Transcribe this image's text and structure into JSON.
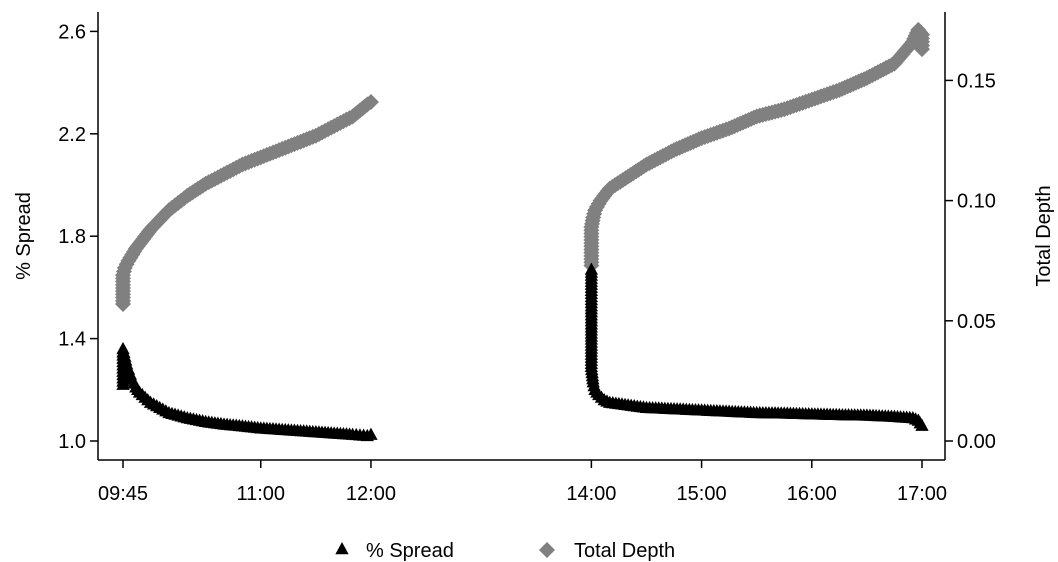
{
  "chart_data": {
    "type": "scatter",
    "x_axis": {
      "kind": "time",
      "ticks": [
        "09:45",
        "11:00",
        "12:00",
        "14:00",
        "15:00",
        "16:00",
        "17:00"
      ],
      "range": [
        "09:45",
        "17:00"
      ]
    },
    "y_left": {
      "label": "% Spread",
      "range": [
        1.0,
        2.65
      ],
      "ticks": [
        "1.0",
        "1.4",
        "1.8",
        "2.2",
        "2.6"
      ]
    },
    "y_right": {
      "label": "Total Depth",
      "range": [
        0.0,
        0.173
      ],
      "ticks": [
        "0.00",
        "0.05",
        "0.10",
        "0.15"
      ]
    },
    "grid": false,
    "legend": {
      "placement": "bottom",
      "entries": [
        {
          "name": "% Spread",
          "marker": "triangle",
          "color": "#000000"
        },
        {
          "name": "Total Depth",
          "marker": "diamond",
          "color": "#808080"
        }
      ]
    },
    "series": [
      {
        "name": "% Spread",
        "axis": "left",
        "marker": "triangle",
        "color": "#000000",
        "sessions": [
          {
            "points": [
              [
                "09:45",
                1.22
              ],
              [
                "09:45",
                1.36
              ],
              [
                "09:46",
                1.33
              ],
              [
                "09:47",
                1.3
              ],
              [
                "09:48",
                1.28
              ],
              [
                "09:49",
                1.26
              ],
              [
                "09:50",
                1.24
              ],
              [
                "09:52",
                1.21
              ],
              [
                "09:54",
                1.19
              ],
              [
                "09:57",
                1.17
              ],
              [
                "10:00",
                1.15
              ],
              [
                "10:05",
                1.13
              ],
              [
                "10:10",
                1.11
              ],
              [
                "10:15",
                1.1
              ],
              [
                "10:20",
                1.09
              ],
              [
                "10:30",
                1.075
              ],
              [
                "10:40",
                1.065
              ],
              [
                "10:50",
                1.058
              ],
              [
                "11:00",
                1.05
              ],
              [
                "11:10",
                1.045
              ],
              [
                "11:20",
                1.04
              ],
              [
                "11:30",
                1.035
              ],
              [
                "11:40",
                1.03
              ],
              [
                "11:50",
                1.025
              ],
              [
                "11:58",
                1.02
              ],
              [
                "12:00",
                1.025
              ]
            ]
          },
          {
            "points": [
              [
                "14:00",
                1.67
              ],
              [
                "14:00",
                1.29
              ],
              [
                "14:01",
                1.23
              ],
              [
                "14:02",
                1.2
              ],
              [
                "14:04",
                1.18
              ],
              [
                "14:07",
                1.16
              ],
              [
                "14:10",
                1.15
              ],
              [
                "14:20",
                1.14
              ],
              [
                "14:30",
                1.13
              ],
              [
                "14:45",
                1.125
              ],
              [
                "15:00",
                1.12
              ],
              [
                "15:15",
                1.115
              ],
              [
                "15:30",
                1.11
              ],
              [
                "15:45",
                1.108
              ],
              [
                "16:00",
                1.105
              ],
              [
                "16:15",
                1.102
              ],
              [
                "16:30",
                1.1
              ],
              [
                "16:45",
                1.095
              ],
              [
                "16:55",
                1.09
              ],
              [
                "16:58",
                1.08
              ],
              [
                "17:00",
                1.06
              ]
            ]
          }
        ]
      },
      {
        "name": "Total Depth",
        "axis": "right",
        "marker": "diamond",
        "color": "#808080",
        "sessions": [
          {
            "points": [
              [
                "09:45",
                0.057
              ],
              [
                "09:45",
                0.069
              ],
              [
                "09:46",
                0.072
              ],
              [
                "09:48",
                0.075
              ],
              [
                "09:52",
                0.08
              ],
              [
                "09:57",
                0.085
              ],
              [
                "10:00",
                0.088
              ],
              [
                "10:05",
                0.092
              ],
              [
                "10:10",
                0.096
              ],
              [
                "10:15",
                0.099
              ],
              [
                "10:20",
                0.102
              ],
              [
                "10:30",
                0.107
              ],
              [
                "10:40",
                0.111
              ],
              [
                "10:50",
                0.115
              ],
              [
                "11:00",
                0.118
              ],
              [
                "11:10",
                0.121
              ],
              [
                "11:20",
                0.124
              ],
              [
                "11:30",
                0.127
              ],
              [
                "11:40",
                0.131
              ],
              [
                "11:50",
                0.135
              ],
              [
                "11:58",
                0.14
              ],
              [
                "12:00",
                0.141
              ]
            ]
          },
          {
            "points": [
              [
                "14:00",
                0.073
              ],
              [
                "14:00",
                0.081
              ],
              [
                "14:00",
                0.089
              ],
              [
                "14:01",
                0.093
              ],
              [
                "14:02",
                0.096
              ],
              [
                "14:05",
                0.1
              ],
              [
                "14:10",
                0.105
              ],
              [
                "14:20",
                0.11
              ],
              [
                "14:30",
                0.115
              ],
              [
                "14:45",
                0.121
              ],
              [
                "15:00",
                0.126
              ],
              [
                "15:15",
                0.13
              ],
              [
                "15:30",
                0.135
              ],
              [
                "15:45",
                0.138
              ],
              [
                "16:00",
                0.142
              ],
              [
                "16:15",
                0.146
              ],
              [
                "16:30",
                0.151
              ],
              [
                "16:45",
                0.157
              ],
              [
                "16:55",
                0.166
              ],
              [
                "16:58",
                0.171
              ],
              [
                "17:00",
                0.169
              ],
              [
                "17:00",
                0.163
              ]
            ]
          }
        ]
      }
    ]
  }
}
